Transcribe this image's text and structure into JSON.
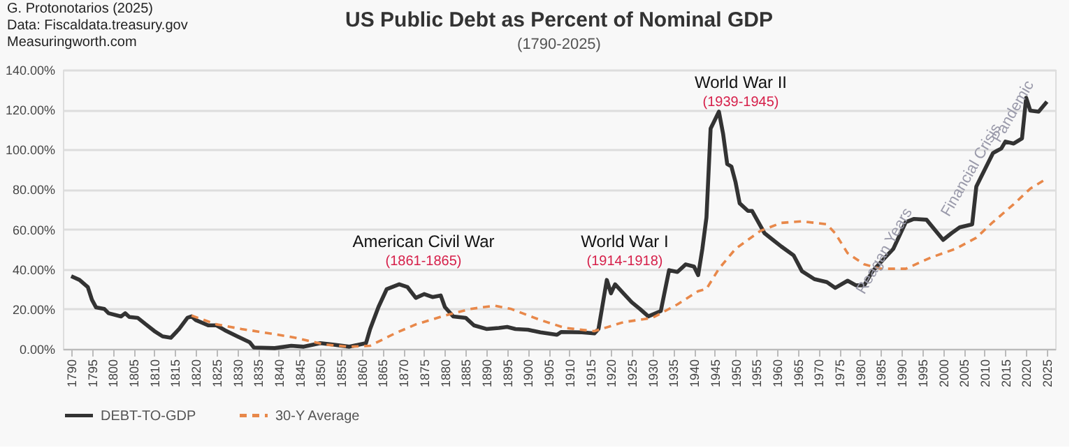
{
  "chart_data": {
    "type": "line",
    "title": "US Public Debt as Percent of Nominal GDP",
    "subtitle": "(1790-2025)",
    "xlim": [
      1788,
      2027
    ],
    "xticks": [
      1790,
      1795,
      1800,
      1805,
      1810,
      1815,
      1820,
      1825,
      1830,
      1835,
      1840,
      1845,
      1850,
      1855,
      1860,
      1865,
      1870,
      1875,
      1880,
      1885,
      1890,
      1895,
      1900,
      1905,
      1910,
      1915,
      1920,
      1925,
      1930,
      1935,
      1940,
      1945,
      1950,
      1955,
      1960,
      1965,
      1970,
      1975,
      1980,
      1985,
      1990,
      1995,
      2000,
      2005,
      2010,
      2015,
      2020,
      2025
    ],
    "ylim": [
      0,
      140
    ],
    "yticks": [
      {
        "value": 0,
        "label": "0.00%"
      },
      {
        "value": 20,
        "label": "20.00%"
      },
      {
        "value": 40,
        "label": "40.00%"
      },
      {
        "value": 60,
        "label": "60.00%"
      },
      {
        "value": 80,
        "label": "80.00%"
      },
      {
        "value": 100,
        "label": "100.00%"
      },
      {
        "value": 120,
        "label": "120.00%"
      },
      {
        "value": 140,
        "label": "140.00%"
      }
    ],
    "grid": "y",
    "legend": "bottom",
    "series": [
      {
        "name": "DEBT-TO-GDP",
        "color": "#333333",
        "line_style": "solid",
        "x": [
          1790,
          1792,
          1794,
          1795,
          1796,
          1798,
          1799,
          1802,
          1803,
          1804,
          1806,
          1808,
          1810,
          1812,
          1814,
          1816,
          1818,
          1819,
          1820,
          1823,
          1825,
          1827,
          1830,
          1833,
          1834,
          1839,
          1843,
          1846,
          1850,
          1853,
          1857,
          1861,
          1862,
          1864,
          1866,
          1869,
          1871,
          1873,
          1875,
          1877,
          1879,
          1880,
          1882,
          1885,
          1887,
          1890,
          1893,
          1895,
          1897,
          1900,
          1903,
          1907,
          1908,
          1913,
          1916,
          1917,
          1919,
          1920,
          1921,
          1923,
          1925,
          1927,
          1929,
          1932,
          1934,
          1936,
          1938,
          1940,
          1941,
          1942,
          1943,
          1944,
          1946,
          1947,
          1948,
          1949,
          1950,
          1951,
          1953,
          1954,
          1957,
          1959,
          1961,
          1964,
          1966,
          1969,
          1972,
          1974,
          1977,
          1979,
          1981,
          1983,
          1987,
          1988,
          1991,
          1993,
          1996,
          2000,
          2002,
          2004,
          2007,
          2008,
          2012,
          2013,
          2014,
          2015,
          2017,
          2019,
          2020,
          2021,
          2023,
          2025
        ],
        "values": [
          36.5,
          34.6,
          31,
          24.6,
          20.8,
          20,
          17.9,
          16.3,
          17.9,
          16,
          15.6,
          12.3,
          9,
          6.3,
          5.6,
          10,
          15.6,
          16.3,
          14.5,
          11.8,
          11.8,
          9.4,
          6.3,
          3.3,
          0.7,
          0.4,
          1.6,
          1.1,
          2.9,
          2.2,
          1.1,
          2.9,
          10,
          21,
          30,
          32.4,
          31,
          25.6,
          27.5,
          26,
          26.8,
          21,
          16.3,
          15.6,
          11.8,
          10,
          10.5,
          11,
          10,
          9.6,
          8.3,
          7.1,
          8.5,
          8.3,
          7.8,
          10,
          34.6,
          27.9,
          32.4,
          27.9,
          23.4,
          20,
          16.3,
          19,
          39.5,
          38.6,
          42.4,
          41.3,
          37,
          50,
          65.9,
          110.5,
          119,
          108,
          92.7,
          91.5,
          83.7,
          73,
          69.2,
          69.2,
          58,
          54.7,
          51.4,
          46.9,
          39,
          35,
          33.5,
          30.6,
          34.2,
          31.9,
          31.9,
          39,
          48,
          50.2,
          63.6,
          65.2,
          64.8,
          54.7,
          58,
          61,
          62.5,
          81.5,
          98.2,
          99.4,
          100.5,
          104,
          103,
          105.6,
          126,
          119.5,
          119,
          124
        ]
      },
      {
        "name": "30-Y Average",
        "color": "#e8884a",
        "line_style": "dashed",
        "x": [
          1819,
          1825,
          1831,
          1839,
          1844,
          1851,
          1857,
          1862,
          1868,
          1873,
          1880,
          1886,
          1892,
          1896,
          1903,
          1909,
          1916,
          1923,
          1930,
          1936,
          1941,
          1943,
          1946,
          1950,
          1956,
          1961,
          1966,
          1972,
          1974,
          1977,
          1981,
          1985,
          1991,
          1997,
          2003,
          2008,
          2012,
          2017,
          2021,
          2025
        ],
        "values": [
          16.7,
          12.3,
          10,
          7.4,
          5.6,
          2.2,
          1.1,
          1.6,
          7.8,
          12.3,
          16.7,
          20,
          21.7,
          20,
          14.5,
          10.5,
          8.9,
          13.4,
          15.6,
          22.3,
          29,
          30.1,
          40.2,
          50.2,
          59.2,
          63.2,
          64,
          62.5,
          58,
          48,
          42.4,
          40.2,
          40.2,
          45.8,
          50.2,
          55.8,
          63.6,
          72.6,
          80.4,
          85.5
        ]
      }
    ],
    "annotations": [
      "G. Protonotarios (2025)",
      "Data: Fiscaldata.treasury.gov",
      "Measuringworth.com",
      "American Civil War",
      "(1861-1865)",
      "World War I",
      "(1914-1918)",
      "World War II",
      "(1939-1945)",
      "Reagan Years",
      "Financial Crisis",
      "Pandemic"
    ]
  }
}
